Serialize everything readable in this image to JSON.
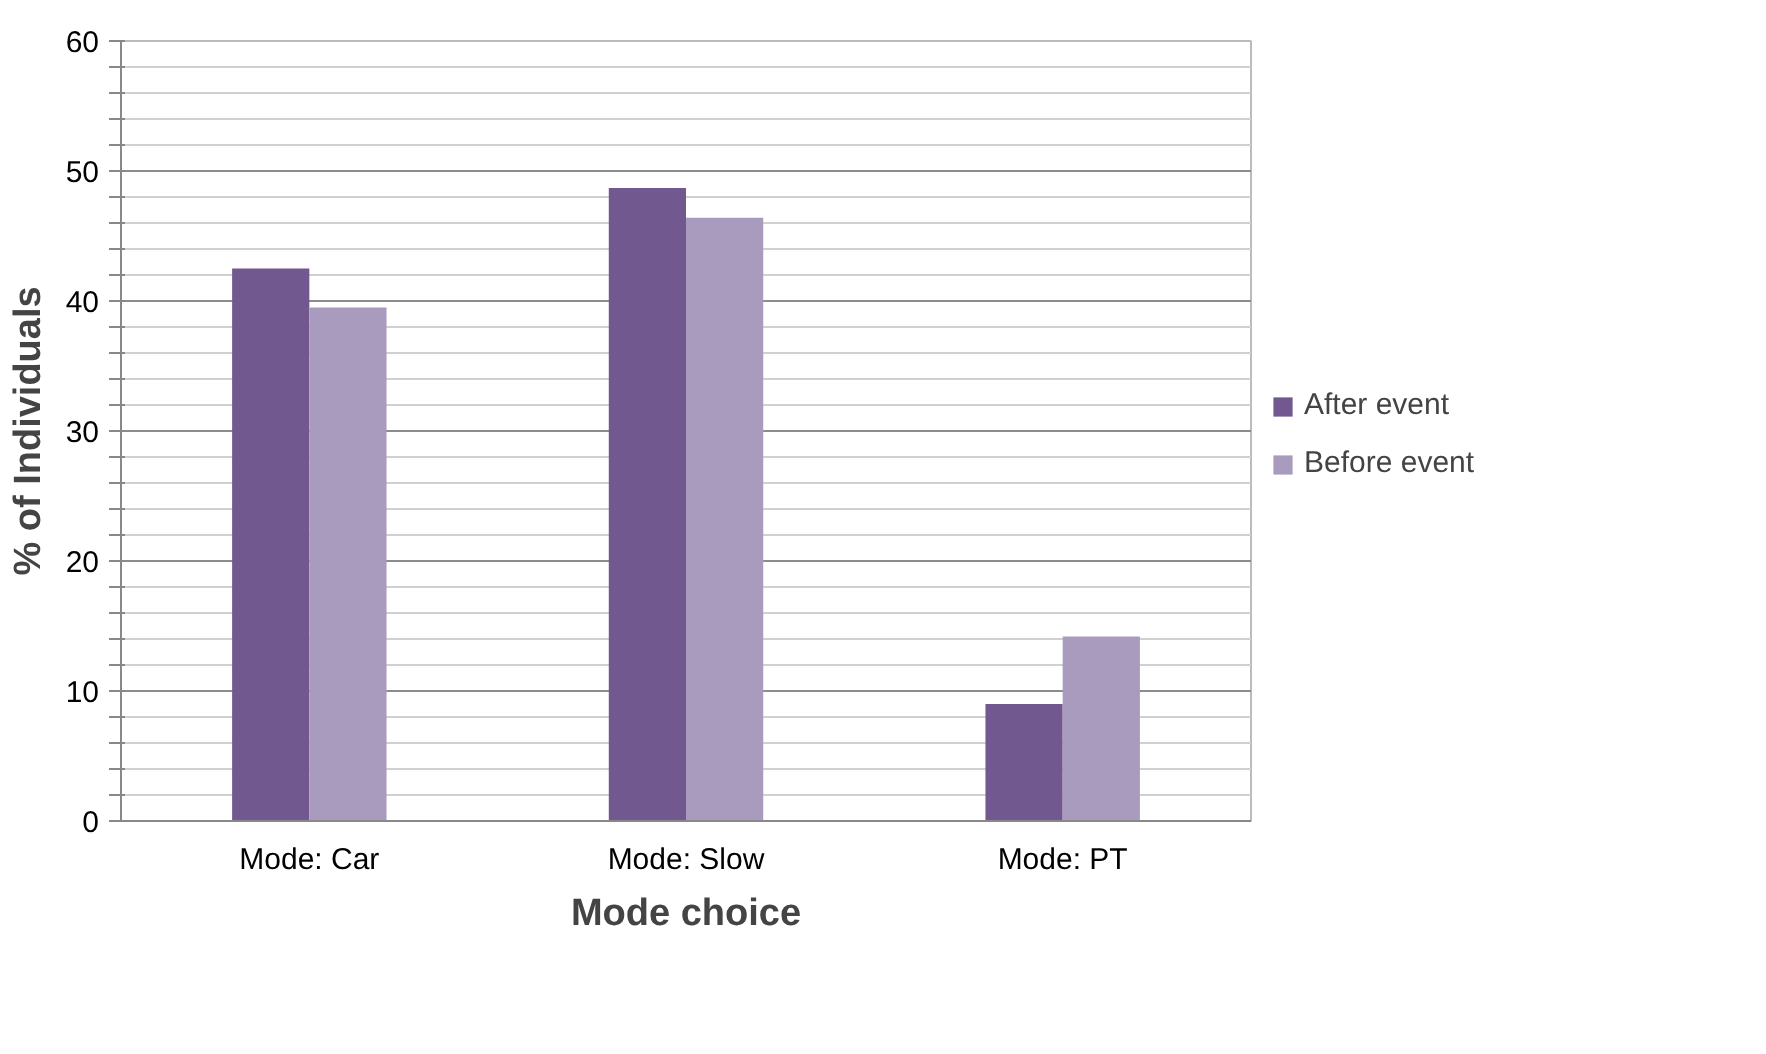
{
  "chart_data": {
    "type": "bar",
    "xlabel": "Mode choice",
    "ylabel": "% of Individuals",
    "categories": [
      "Mode: Car",
      "Mode: Slow",
      "Mode: PT"
    ],
    "series": [
      {
        "name": "After event",
        "color": "#71588f",
        "values": [
          42.5,
          48.7,
          9.0
        ]
      },
      {
        "name": "Before event",
        "color": "#a99bbd",
        "values": [
          39.5,
          46.4,
          14.2
        ]
      }
    ],
    "ylim": [
      0,
      60
    ],
    "yticks": [
      0,
      {
        "value": 2,
        "label": null
      },
      {
        "value": 4,
        "label": null
      },
      {
        "value": 6,
        "label": null
      },
      {
        "value": 8,
        "label": null
      },
      10,
      {
        "value": 12,
        "label": null
      },
      {
        "value": 14,
        "label": null
      },
      {
        "value": 16,
        "label": null
      },
      {
        "value": 18,
        "label": null
      },
      20,
      {
        "value": 22,
        "label": null
      },
      {
        "value": 24,
        "label": null
      },
      {
        "value": 26,
        "label": null
      },
      {
        "value": 28,
        "label": null
      },
      30,
      {
        "value": 32,
        "label": null
      },
      {
        "value": 34,
        "label": null
      },
      {
        "value": 36,
        "label": null
      },
      {
        "value": 38,
        "label": null
      },
      40,
      {
        "value": 42,
        "label": null
      },
      {
        "value": 44,
        "label": null
      },
      {
        "value": 46,
        "label": null
      },
      {
        "value": 48,
        "label": null
      },
      50,
      {
        "value": 52,
        "label": null
      },
      {
        "value": 54,
        "label": null
      },
      {
        "value": 56,
        "label": null
      },
      {
        "value": 58,
        "label": null
      },
      60
    ],
    "grid": "y",
    "legend": "right"
  }
}
